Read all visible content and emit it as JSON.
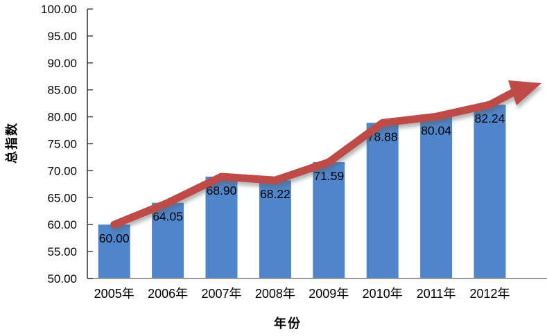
{
  "chart_data": {
    "type": "bar",
    "title": "",
    "categories": [
      "2005年",
      "2006年",
      "2007年",
      "2008年",
      "2009年",
      "2010年",
      "2011年",
      "2012年"
    ],
    "series": [
      {
        "name": "index-bars",
        "type": "bar",
        "values": [
          60.0,
          64.05,
          68.9,
          68.22,
          71.59,
          78.88,
          80.04,
          82.24
        ],
        "labels": [
          "60.00",
          "64.05",
          "68.90",
          "68.22",
          "71.59",
          "78.88",
          "80.04",
          "82.24"
        ],
        "color": "#4F86CB"
      },
      {
        "name": "trend-arrow-line",
        "type": "line",
        "values": [
          60.0,
          64.05,
          68.9,
          68.22,
          71.59,
          78.88,
          80.04,
          82.24
        ],
        "arrow": true,
        "color": "#BE4B48"
      }
    ],
    "xlabel": "年份",
    "ylabel": "总指数",
    "ylim": [
      50,
      100
    ],
    "ytick_step": 5,
    "ytick_labels": [
      "100.00",
      "95.00",
      "90.00",
      "85.00",
      "80.00",
      "75.00",
      "70.00",
      "65.00",
      "60.00",
      "55.00",
      "50.00"
    ],
    "grid": false,
    "legend": false,
    "colors": {
      "bar": "#4F86CB",
      "line": "#BE4B48",
      "y_axis": "#3a3a3a",
      "x_axis": "#9a9a9a",
      "tick": "#3a3a3a",
      "text": "#000000"
    }
  }
}
